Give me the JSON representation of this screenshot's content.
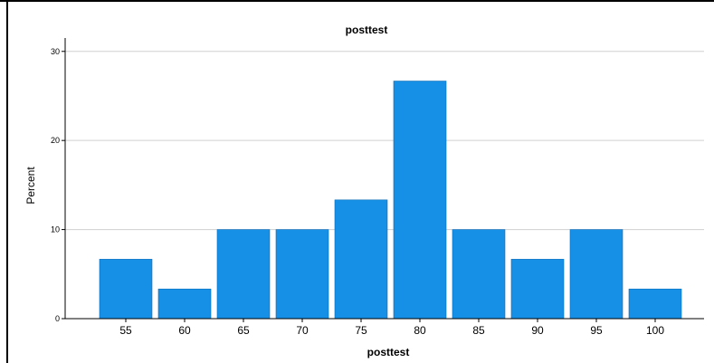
{
  "chart_data": {
    "type": "bar",
    "title": "posttest",
    "xlabel": "posttest",
    "ylabel": "Percent",
    "categories": [
      "55",
      "60",
      "65",
      "70",
      "75",
      "80",
      "85",
      "90",
      "95",
      "100"
    ],
    "values": [
      6.67,
      3.33,
      10.0,
      10.0,
      13.33,
      26.67,
      10.0,
      6.67,
      10.0,
      3.33
    ],
    "ylim": [
      0,
      31.5
    ],
    "yticks": [
      "0",
      "10",
      "20",
      "30"
    ],
    "grid": true,
    "legend": "none",
    "colors": {
      "bar": "#1690e6",
      "bar_stroke": "#0d6db8",
      "grid": "#d0d0d0",
      "axis": "#000000",
      "frame": "#000000"
    }
  }
}
